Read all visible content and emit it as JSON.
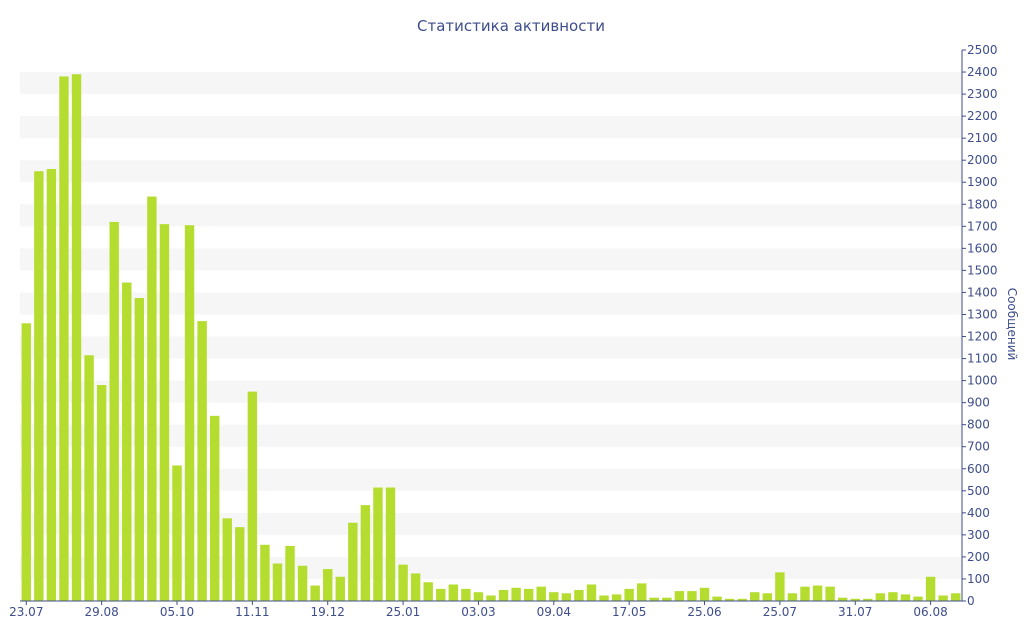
{
  "chart_data": {
    "type": "bar",
    "title": "Статистика активности",
    "ylabel": "Сообщений",
    "ylim": [
      0,
      2500
    ],
    "y_ticks": [
      0,
      100,
      200,
      300,
      400,
      500,
      600,
      700,
      800,
      900,
      1000,
      1100,
      1200,
      1300,
      1400,
      1500,
      1600,
      1700,
      1800,
      1900,
      2000,
      2100,
      2200,
      2300,
      2400,
      2500
    ],
    "x_tick_labels": [
      {
        "index": 0,
        "label": "23.07"
      },
      {
        "index": 6,
        "label": "29.08"
      },
      {
        "index": 12,
        "label": "05.10"
      },
      {
        "index": 18,
        "label": "11.11"
      },
      {
        "index": 24,
        "label": "19.12"
      },
      {
        "index": 30,
        "label": "25.01"
      },
      {
        "index": 36,
        "label": "03.03"
      },
      {
        "index": 42,
        "label": "09.04"
      },
      {
        "index": 48,
        "label": "17.05"
      },
      {
        "index": 54,
        "label": "25.06"
      },
      {
        "index": 60,
        "label": "25.07"
      },
      {
        "index": 66,
        "label": "31.07"
      },
      {
        "index": 72,
        "label": "06.08"
      }
    ],
    "values": [
      1260,
      1950,
      1960,
      2380,
      2390,
      1115,
      980,
      1720,
      1445,
      1375,
      1835,
      1710,
      615,
      1705,
      1270,
      840,
      375,
      335,
      950,
      255,
      170,
      250,
      160,
      70,
      145,
      110,
      355,
      435,
      515,
      515,
      165,
      125,
      85,
      55,
      75,
      55,
      40,
      25,
      50,
      60,
      55,
      65,
      40,
      35,
      50,
      75,
      25,
      30,
      55,
      80,
      15,
      15,
      45,
      45,
      60,
      20,
      10,
      10,
      40,
      35,
      130,
      35,
      65,
      70,
      65,
      15,
      10,
      10,
      35,
      40,
      30,
      20,
      110,
      25,
      35
    ],
    "grid": "horizontal-bands",
    "y_axis_position": "right",
    "colors": {
      "bar": "#b5dd2f",
      "band": "#f6f6f6",
      "text": "#3e4e8a"
    }
  }
}
